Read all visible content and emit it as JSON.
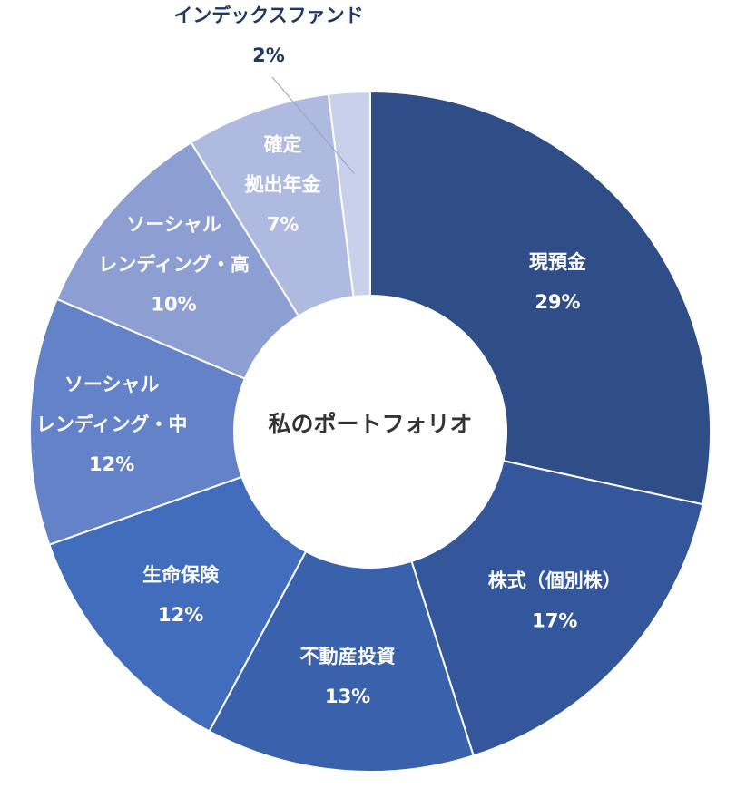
{
  "chart_data": {
    "type": "pie",
    "variant": "donut",
    "title": "私のポートフォリオ",
    "series": [
      {
        "name": "現預金",
        "name_lines": [
          "現預金"
        ],
        "value": 29,
        "label": "29%",
        "color": "#2f4d87"
      },
      {
        "name": "株式（個別株）",
        "name_lines": [
          "株式（個別株）"
        ],
        "value": 17,
        "label": "17%",
        "color": "#34579c"
      },
      {
        "name": "不動産投資",
        "name_lines": [
          "不動産投資"
        ],
        "value": 13,
        "label": "13%",
        "color": "#3a61ac"
      },
      {
        "name": "生命保険",
        "name_lines": [
          "生命保険"
        ],
        "value": 12,
        "label": "12%",
        "color": "#426dbc"
      },
      {
        "name": "ソーシャルレンディング・中",
        "name_lines": [
          "ソーシャル",
          "レンディング・中"
        ],
        "value": 12,
        "label": "12%",
        "color": "#6482c7"
      },
      {
        "name": "ソーシャルレンディング・高",
        "name_lines": [
          "ソーシャル",
          "レンディング・高"
        ],
        "value": 10,
        "label": "10%",
        "color": "#8d9fd2"
      },
      {
        "name": "確定拠出年金",
        "name_lines": [
          "確定",
          "拠出年金"
        ],
        "value": 7,
        "label": "7%",
        "color": "#afbae0"
      },
      {
        "name": "インデックスファンド",
        "name_lines": [
          "インデックスファンド"
        ],
        "value": 2,
        "label": "2%",
        "color": "#c8d0eb"
      }
    ]
  }
}
